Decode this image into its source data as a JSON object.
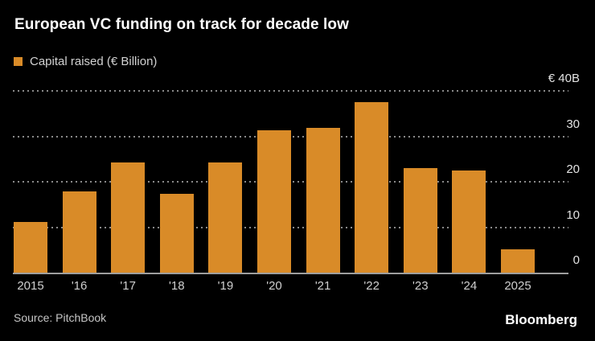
{
  "header": {
    "title": "European VC funding on track for decade low"
  },
  "legend": {
    "label": "Capital raised (€ Billion)"
  },
  "chart_data": {
    "type": "bar",
    "title": "European VC funding on track for decade low",
    "series_name": "Capital raised (€ Billion)",
    "categories": [
      "2015",
      "'16",
      "'17",
      "'18",
      "'19",
      "'20",
      "'21",
      "'22",
      "'23",
      "'24",
      "2025"
    ],
    "values": [
      11.2,
      17.8,
      24.2,
      17.4,
      24.3,
      31.3,
      31.9,
      37.5,
      23.1,
      22.4,
      5.2
    ],
    "unit": "€ Billion",
    "ylim": [
      0,
      40
    ],
    "y_ticks": [
      {
        "value": 40,
        "label": "€ 40B"
      },
      {
        "value": 30,
        "label": "30"
      },
      {
        "value": 20,
        "label": "20"
      },
      {
        "value": 10,
        "label": "10"
      },
      {
        "value": 0,
        "label": "0"
      }
    ],
    "grid": "horizontal-dotted",
    "legend_position": "top-left",
    "y_axis_side": "right"
  },
  "footer": {
    "source": "Source: PitchBook",
    "brand": "Bloomberg"
  },
  "colors": {
    "background": "#000000",
    "bar": "#d98b28",
    "grid": "#8a8a8a",
    "axis_line": "#9e9e9e",
    "title": "#ffffff",
    "axis_label": "#cfcfcf"
  }
}
